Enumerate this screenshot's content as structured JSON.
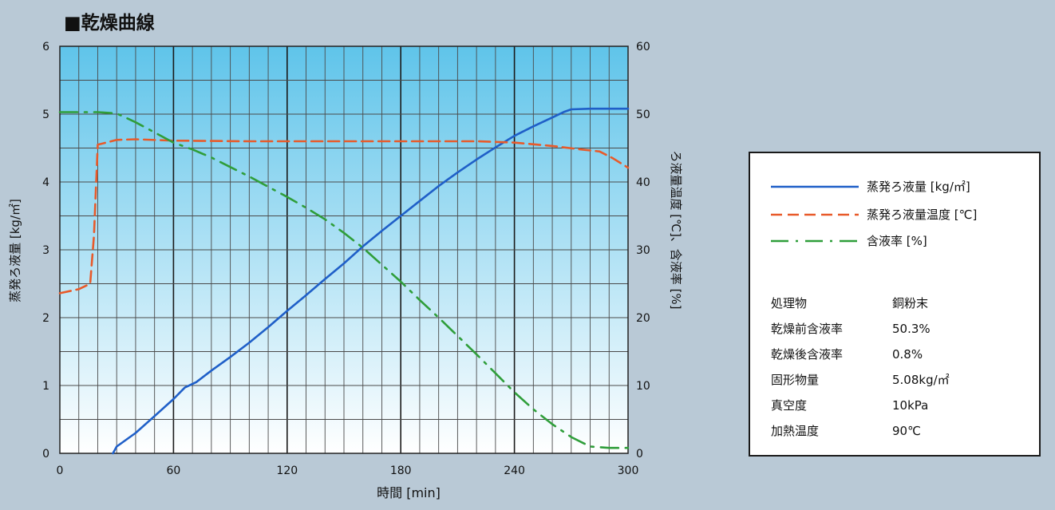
{
  "title": "■乾燥曲線",
  "chart_data": {
    "type": "line",
    "xlabel": "時間 [min]",
    "ylabel_left": "蒸発ろ液量 [kg/㎡]",
    "ylabel_right": "ろ液量温度 [℃]、含液率 [%]",
    "xlim": [
      0,
      300
    ],
    "ylim_left": [
      0,
      6
    ],
    "ylim_right": [
      0,
      60
    ],
    "xticks": [
      "0",
      "60",
      "120",
      "180",
      "240",
      "300"
    ],
    "yticks_left": [
      "0",
      "1",
      "2",
      "3",
      "4",
      "5",
      "6"
    ],
    "yticks_right": [
      "0",
      "10",
      "20",
      "30",
      "40",
      "50",
      "60"
    ],
    "grid": true,
    "legend_position": "right",
    "series": [
      {
        "name": "蒸発ろ液量 [kg/㎡]",
        "axis": "left",
        "color": "#1f5fc8",
        "style": "solid",
        "x": [
          28,
          30,
          40,
          50,
          60,
          66,
          72,
          80,
          90,
          100,
          110,
          120,
          130,
          140,
          150,
          160,
          170,
          180,
          190,
          200,
          210,
          220,
          230,
          240,
          250,
          260,
          266,
          270,
          280,
          290,
          300
        ],
        "y": [
          0,
          0.1,
          0.3,
          0.55,
          0.8,
          0.97,
          1.05,
          1.22,
          1.42,
          1.63,
          1.86,
          2.1,
          2.33,
          2.57,
          2.8,
          3.05,
          3.28,
          3.5,
          3.72,
          3.94,
          4.14,
          4.33,
          4.51,
          4.68,
          4.82,
          4.95,
          5.03,
          5.07,
          5.08,
          5.08,
          5.08
        ]
      },
      {
        "name": "蒸発ろ液量温度 [℃]",
        "axis": "right",
        "color": "#e85a2a",
        "style": "dashed",
        "x": [
          0,
          10,
          16,
          18,
          20,
          30,
          40,
          60,
          100,
          140,
          180,
          220,
          240,
          260,
          275,
          285,
          292,
          300
        ],
        "y": [
          23.6,
          24.2,
          25,
          32,
          45.5,
          46.2,
          46.3,
          46.1,
          46,
          46,
          46,
          46,
          45.8,
          45.3,
          44.8,
          44.5,
          43.5,
          42.1
        ]
      },
      {
        "name": "含液率 [%]",
        "axis": "right",
        "color": "#2f9e3a",
        "style": "dashdot",
        "x": [
          0,
          20,
          30,
          40,
          50,
          60,
          70,
          80,
          90,
          100,
          110,
          120,
          130,
          140,
          150,
          160,
          170,
          180,
          190,
          200,
          210,
          220,
          230,
          240,
          250,
          260,
          270,
          280,
          290,
          300
        ],
        "y": [
          50.3,
          50.3,
          50.1,
          48.8,
          47.3,
          45.8,
          44.8,
          43.6,
          42.2,
          40.8,
          39.3,
          37.8,
          36.2,
          34.5,
          32.5,
          30.3,
          27.8,
          25.3,
          22.6,
          20,
          17.3,
          14.6,
          11.8,
          9,
          6.5,
          4.3,
          2.4,
          1.0,
          0.8,
          0.8
        ]
      }
    ]
  },
  "legend": [
    {
      "label": "蒸発ろ液量 [kg/㎡]"
    },
    {
      "label": "蒸発ろ液量温度 [℃]"
    },
    {
      "label": "含液率 [%]"
    }
  ],
  "info": [
    {
      "key": "処理物",
      "value": "銅粉末"
    },
    {
      "key": "乾燥前含液率",
      "value": "50.3%"
    },
    {
      "key": "乾燥後含液率",
      "value": "0.8%"
    },
    {
      "key": "固形物量",
      "value": "5.08kg/㎡"
    },
    {
      "key": "真空度",
      "value": "10kPa"
    },
    {
      "key": "加熱温度",
      "value": "90℃"
    }
  ]
}
